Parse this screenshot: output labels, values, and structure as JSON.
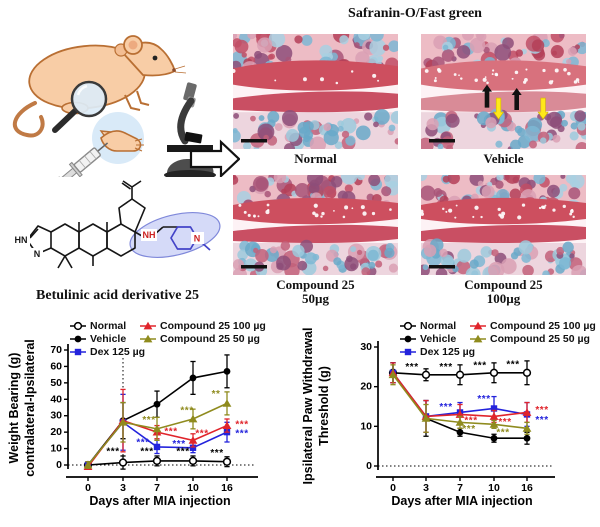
{
  "figure": {
    "structure": {
      "label": "Betulinic acid derivative 25",
      "atoms": {
        "pyrazole_hn": "HN",
        "pyrazole_n": "N",
        "amine_nh": "NH",
        "piperidine_n": "N"
      }
    },
    "histology": {
      "title": "Safranin-O/Fast green",
      "panels": [
        {
          "label": "Normal",
          "sublabel": "",
          "arrows": false
        },
        {
          "label": "Vehicle",
          "sublabel": "",
          "arrows": true
        },
        {
          "label": "Compound 25",
          "sublabel": "50µg",
          "arrows": false
        },
        {
          "label": "Compound 25",
          "sublabel": "100µg",
          "arrows": false
        }
      ]
    }
  },
  "colors": {
    "red": "#E0242B",
    "blue": "#2323DC",
    "olive": "#8F8B1E",
    "black": "#000000",
    "arrow_yellow": "#FFE81A"
  },
  "chart_data": [
    {
      "type": "line",
      "title": "",
      "xlabel": "Days after MIA injection",
      "ylabel_lines": [
        "Weight Bearing (g)",
        "contralateral-Ipsilateral"
      ],
      "x_categories": [
        0,
        3,
        7,
        10,
        16
      ],
      "ylim": [
        0,
        70
      ],
      "yticks": [
        0,
        10,
        20,
        30,
        40,
        50,
        60,
        70
      ],
      "grid": false,
      "legend_position": "top",
      "zero_line_dotted": true,
      "vline_at_category": 1,
      "series": [
        {
          "name": "Normal",
          "color": "#000000",
          "marker": "circle-open",
          "values": [
            0,
            1.5,
            2.5,
            2.5,
            2
          ],
          "errors": [
            1,
            4,
            3,
            3,
            3
          ]
        },
        {
          "name": "Vehicle",
          "color": "#000000",
          "marker": "circle",
          "values": [
            0,
            27,
            37,
            53,
            57
          ],
          "errors": [
            2,
            11,
            8,
            10,
            10
          ]
        },
        {
          "name": "Dex 125 µg",
          "color": "#2323DC",
          "marker": "square",
          "values": [
            0,
            26,
            11,
            10.5,
            20
          ],
          "errors": [
            2,
            17,
            4,
            3,
            6
          ]
        },
        {
          "name": "Compound 25 100 µg",
          "color": "#E0242B",
          "marker": "triangle",
          "values": [
            -1,
            27,
            20,
            15,
            24
          ],
          "errors": [
            1,
            19,
            4,
            4,
            4
          ]
        },
        {
          "name": "Compound 25 50 µg",
          "color": "#8F8B1E",
          "marker": "triangle",
          "values": [
            0,
            26,
            22,
            28,
            37.5
          ],
          "errors": [
            2,
            12,
            7,
            6,
            7
          ]
        }
      ],
      "annotations": [
        {
          "ci": 1,
          "y": 8,
          "text": "***",
          "color": "#000000",
          "dx": -10
        },
        {
          "ci": 2,
          "y": 8,
          "text": "***",
          "color": "#000000",
          "dx": -10
        },
        {
          "ci": 3,
          "y": 8,
          "text": "***",
          "color": "#000000",
          "dx": -10
        },
        {
          "ci": 4,
          "y": 7,
          "text": "***",
          "color": "#000000",
          "dx": -10
        },
        {
          "ci": 2,
          "y": 27,
          "text": "***",
          "color": "#8F8B1E",
          "dx": -8
        },
        {
          "ci": 3,
          "y": 33,
          "text": "***",
          "color": "#8F8B1E",
          "dx": -6
        },
        {
          "ci": 4,
          "y": 43,
          "text": "**",
          "color": "#8F8B1E",
          "dx": -11
        },
        {
          "ci": 2,
          "y": 20,
          "text": "***",
          "color": "#E0242B",
          "dx": 14
        },
        {
          "ci": 3,
          "y": 19,
          "text": "***",
          "color": "#E0242B",
          "dx": 9
        },
        {
          "ci": 4,
          "y": 24.5,
          "text": "***",
          "color": "#E0242B",
          "dx": 15
        },
        {
          "ci": 2,
          "y": 13.5,
          "text": "***",
          "color": "#2323DC",
          "dx": -14
        },
        {
          "ci": 3,
          "y": 12.5,
          "text": "***",
          "color": "#2323DC",
          "dx": -14
        },
        {
          "ci": 4,
          "y": 19,
          "text": "***",
          "color": "#2323DC",
          "dx": 15
        }
      ]
    },
    {
      "type": "line",
      "title": "",
      "xlabel": "Days after MIA injection",
      "ylabel_lines": [
        "Ipsilateral Paw Withdrawal",
        "Threshold (g)"
      ],
      "x_categories": [
        0,
        3,
        7,
        10,
        16
      ],
      "ylim": [
        0,
        30
      ],
      "yticks": [
        0,
        10,
        20,
        30
      ],
      "grid": false,
      "legend_position": "top",
      "zero_line_dotted": true,
      "vline_at_category": null,
      "series": [
        {
          "name": "Normal",
          "color": "#000000",
          "marker": "circle-open",
          "values": [
            23.5,
            23,
            23,
            23.5,
            23.5
          ],
          "errors": [
            2.5,
            1.5,
            2.5,
            2.5,
            3
          ]
        },
        {
          "name": "Vehicle",
          "color": "#000000",
          "marker": "circle",
          "values": [
            23.5,
            12,
            8.5,
            7,
            7
          ],
          "errors": [
            2.5,
            4.5,
            1,
            1,
            1.5
          ]
        },
        {
          "name": "Dex 125 µg",
          "color": "#2323DC",
          "marker": "square",
          "values": [
            23.5,
            12.5,
            13.5,
            14.5,
            13
          ],
          "errors": [
            2.5,
            4,
            2.5,
            3,
            3
          ]
        },
        {
          "name": "Compound 25 100 µg",
          "color": "#E0242B",
          "marker": "triangle",
          "values": [
            23.5,
            12.5,
            13,
            12.5,
            13.5
          ],
          "errors": [
            2.5,
            4,
            2.5,
            1.5,
            2.5
          ]
        },
        {
          "name": "Compound 25 50 µg",
          "color": "#8F8B1E",
          "marker": "triangle",
          "values": [
            23,
            12,
            11,
            10.5,
            9.5
          ],
          "errors": [
            2.5,
            3.5,
            1.5,
            1,
            1.5
          ]
        }
      ],
      "annotations": [
        {
          "ci": 1,
          "y": 24.8,
          "text": "***",
          "color": "#000000",
          "dx": -14
        },
        {
          "ci": 2,
          "y": 24.8,
          "text": "***",
          "color": "#000000",
          "dx": -14
        },
        {
          "ci": 3,
          "y": 25.2,
          "text": "***",
          "color": "#000000",
          "dx": -14
        },
        {
          "ci": 4,
          "y": 25.5,
          "text": "***",
          "color": "#000000",
          "dx": -14
        },
        {
          "ci": 2,
          "y": 14.8,
          "text": "***",
          "color": "#2323DC",
          "dx": -14
        },
        {
          "ci": 3,
          "y": 16.8,
          "text": "***",
          "color": "#2323DC",
          "dx": -10
        },
        {
          "ci": 4,
          "y": 11.5,
          "text": "***",
          "color": "#2323DC",
          "dx": 15
        },
        {
          "ci": 2,
          "y": 11.3,
          "text": "***",
          "color": "#E0242B",
          "dx": 11
        },
        {
          "ci": 3,
          "y": 11,
          "text": "***",
          "color": "#E0242B",
          "dx": 11
        },
        {
          "ci": 4,
          "y": 14,
          "text": "***",
          "color": "#E0242B",
          "dx": 15
        },
        {
          "ci": 2,
          "y": 9.2,
          "text": "***",
          "color": "#8F8B1E",
          "dx": 9
        },
        {
          "ci": 3,
          "y": 8.3,
          "text": "***",
          "color": "#8F8B1E",
          "dx": 9
        }
      ]
    }
  ]
}
